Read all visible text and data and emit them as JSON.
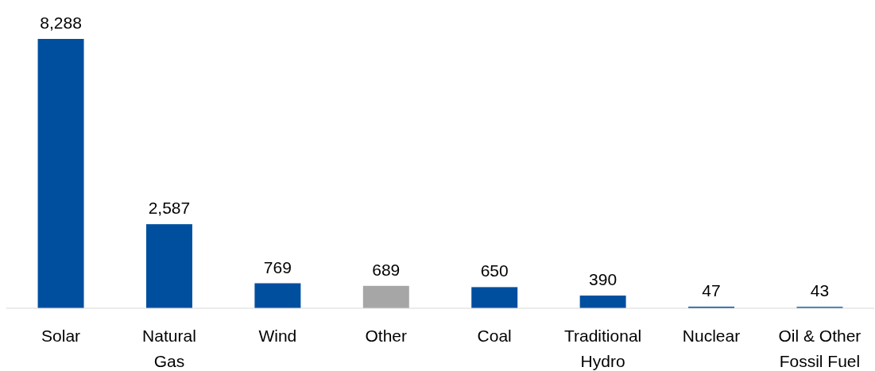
{
  "chart_data": {
    "type": "bar",
    "categories": [
      "Solar",
      "Natural Gas",
      "Wind",
      "Other",
      "Coal",
      "Traditional Hydro",
      "Nuclear",
      "Oil & Other Fossil Fuel"
    ],
    "values": [
      8288,
      2587,
      769,
      689,
      650,
      390,
      47,
      43
    ],
    "colors": [
      "#004f9f",
      "#004f9f",
      "#004f9f",
      "#a6a6a6",
      "#004f9f",
      "#004f9f",
      "#004f9f",
      "#004f9f"
    ],
    "value_labels": [
      "8,288",
      "2,587",
      "769",
      "689",
      "650",
      "390",
      "47",
      "43"
    ]
  }
}
